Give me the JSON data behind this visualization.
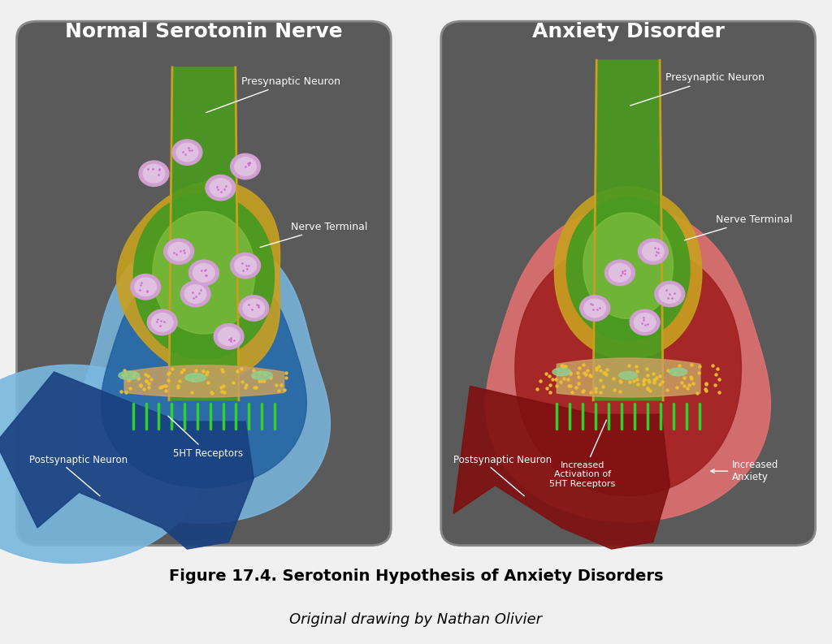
{
  "bg_color": "#7a7a7a",
  "panel_bg": "#6b6b6b",
  "panel_border": "#444444",
  "title_left": "Normal Serotonin Nerve",
  "title_right": "Anxiety Disorder",
  "caption_bold": "Figure 17.4. Serotonin Hypothesis of Anxiety Disorders",
  "caption_normal": "Original drawing by Nathan Olivier",
  "label_presynaptic": "Presynaptic Neuron",
  "label_nerve_terminal": "Nerve Terminal",
  "label_postsynaptic": "Postsynaptic Neuron",
  "label_5ht": "5HT Receptors",
  "label_increased_activation": "Increased\nActivation of\n5HT Receptors",
  "label_increased_anxiety": "Increased\nAnxiety",
  "blue_outer": "#4a90c4",
  "blue_mid": "#2060a0",
  "blue_dark": "#1a4080",
  "blue_light": "#7ab8e0",
  "red_outer": "#c04040",
  "red_mid": "#a02020",
  "red_dark": "#801010",
  "red_light": "#e07070",
  "green_nerve": "#4a9a20",
  "green_light": "#80c040",
  "gold_border": "#c8a020",
  "gold_light": "#e8c840",
  "synapse_color": "#c8a060",
  "dot_color": "#f0c030",
  "vesicle_outer": "#d0a0d0",
  "vesicle_inner": "#e0c0e0",
  "receptor_color": "#40c040",
  "white_text": "#ffffff",
  "dark_text": "#1a1a1a"
}
